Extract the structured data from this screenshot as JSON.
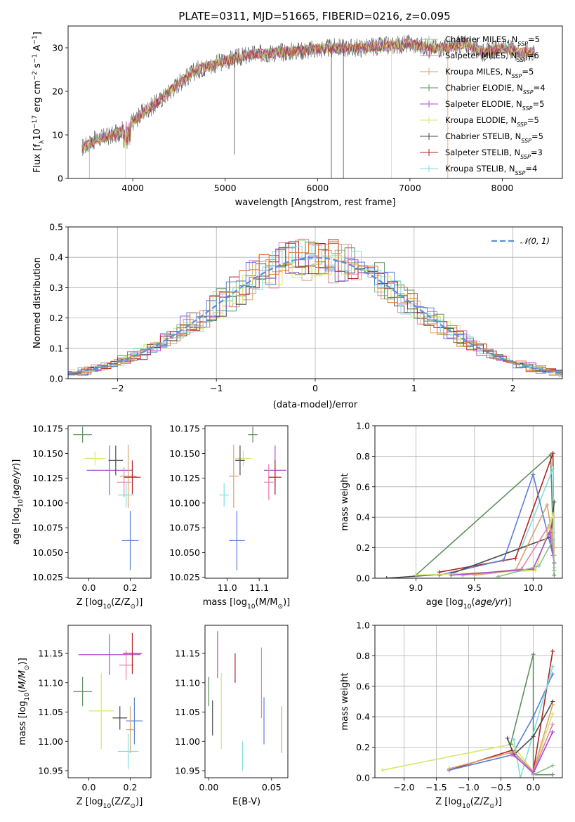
{
  "title": "PLATE=0311, MJD=51665, FIBERID=0216, z=0.095",
  "colors": {
    "ch_miles": "#8fbf8f",
    "sa_miles": "#e87faf",
    "kr_miles": "#d9a36b",
    "ch_elodie": "#5f8f5f",
    "sa_elodie": "#a64ccf",
    "kr_elodie": "#d6e86a",
    "ch_stelib": "#4a4a4a",
    "sa_stelib": "#b22222",
    "kr_stelib": "#80dede",
    "extra_blue": "#5b7fd6",
    "extra_orange": "#e07828",
    "gauss": "#5b8fd6"
  },
  "chart_data": [
    {
      "id": "spectrum",
      "type": "line",
      "xlabel": "wavelength [Angstrom, rest frame]",
      "ylabel": "Flux [f",
      "ylabel_sub": "λ",
      "ylabel_rest": "10",
      "ylabel_exp": "−17",
      "ylabel_tail": " erg cm",
      "ylabel_exp2": "−2",
      "ylabel_tail2": " s",
      "ylabel_exp3": "−1",
      "ylabel_tail3": " A",
      "ylabel_exp4": "−1",
      "ylabel_end": "]",
      "xlim": [
        3300,
        8650
      ],
      "ylim": [
        0,
        35
      ],
      "xticks": [
        "4000",
        "5000",
        "6000",
        "7000",
        "8000"
      ],
      "xtick_values": [
        4000,
        5000,
        6000,
        7000,
        8000
      ],
      "yticks": [
        "0",
        "10",
        "20",
        "30"
      ],
      "ytick_values": [
        0,
        10,
        20,
        30
      ],
      "envelope": {
        "x": [
          3450,
          3600,
          3800,
          3950,
          4100,
          4300,
          4500,
          4700,
          5000,
          5300,
          5600,
          5900,
          6200,
          6500,
          6800,
          7000,
          7200,
          7400,
          7600,
          7800,
          8000,
          8200,
          8350
        ],
        "y": [
          7,
          9,
          10,
          12,
          15,
          18,
          22,
          25,
          27,
          28.5,
          29,
          29.5,
          30,
          30,
          30.5,
          31,
          30,
          30,
          31,
          29,
          30,
          29,
          29
        ]
      },
      "legend": [
        {
          "name": "Chabrier MILES, N",
          "sub": "SSP",
          "tail": "=5",
          "color_key": "ch_miles"
        },
        {
          "name": "Salpeter MILES, N",
          "sub": "SSP",
          "tail": "=6",
          "color_key": "sa_miles"
        },
        {
          "name": "Kroupa MILES, N",
          "sub": "SSP",
          "tail": "=5",
          "color_key": "kr_miles"
        },
        {
          "name": "Chabrier ELODIE, N",
          "sub": "SSP",
          "tail": "=4",
          "color_key": "ch_elodie"
        },
        {
          "name": "Salpeter ELODIE, N",
          "sub": "SSP",
          "tail": "=5",
          "color_key": "sa_elodie"
        },
        {
          "name": "Kroupa ELODIE, N",
          "sub": "SSP",
          "tail": "=5",
          "color_key": "kr_elodie"
        },
        {
          "name": "Chabrier STELIB, N",
          "sub": "SSP",
          "tail": "=5",
          "color_key": "ch_stelib"
        },
        {
          "name": "Salpeter STELIB, N",
          "sub": "SSP",
          "tail": "=3",
          "color_key": "sa_stelib"
        },
        {
          "name": "Kroupa STELIB, N",
          "sub": "SSP",
          "tail": "=4",
          "color_key": "kr_stelib"
        }
      ],
      "legend_placement": "right"
    },
    {
      "id": "residuals",
      "type": "histogram",
      "xlabel": "(data-model)/error",
      "ylabel": "Normed distribution",
      "xlim": [
        -2.5,
        2.5
      ],
      "ylim": [
        0,
        0.5
      ],
      "xticks": [
        "−2",
        "−1",
        "0",
        "1",
        "2"
      ],
      "xtick_values": [
        -2,
        -1,
        0,
        1,
        2
      ],
      "yticks": [
        "0.0",
        "0.1",
        "0.2",
        "0.3",
        "0.4",
        "0.5"
      ],
      "ytick_values": [
        0,
        0.1,
        0.2,
        0.3,
        0.4,
        0.5
      ],
      "grid": true,
      "bin_width": 0.1,
      "gauss_legend": "𝒩(0, 1)",
      "legend_placement": "top-right"
    },
    {
      "id": "age_vs_Z",
      "type": "errorbar",
      "xlabel": "Z [log",
      "xlabel_sub": "10",
      "xlabel_tail": "(Z/Z",
      "xlabel_sub2": "⊙",
      "xlabel_end": ")]",
      "ylabel": "age  [log",
      "ylabel_sub": "10",
      "ylabel_tail": "(age/yr)]",
      "xlim": [
        -0.1,
        0.3
      ],
      "ylim": [
        10.024,
        10.178
      ],
      "xticks": [
        "0.0",
        "0.2"
      ],
      "xtick_values": [
        0,
        0.2
      ],
      "yticks": [
        "10.025",
        "10.050",
        "10.075",
        "10.100",
        "10.125",
        "10.150",
        "10.175"
      ],
      "ytick_values": [
        10.025,
        10.05,
        10.075,
        10.1,
        10.125,
        10.15,
        10.175
      ],
      "points": [
        {
          "x": -0.03,
          "y": 10.169,
          "ex": 0.045,
          "ey": 0.008,
          "c": "ch_elodie"
        },
        {
          "x": 0.03,
          "y": 10.145,
          "ex": 0.05,
          "ey": 0.007,
          "c": "kr_elodie"
        },
        {
          "x": 0.1,
          "y": 10.133,
          "ex": 0.11,
          "ey": 0.025,
          "c": "sa_elodie"
        },
        {
          "x": 0.13,
          "y": 10.143,
          "ex": 0.035,
          "ey": 0.015,
          "c": "ch_stelib"
        },
        {
          "x": 0.17,
          "y": 10.121,
          "ex": 0.035,
          "ey": 0.015,
          "c": "sa_miles"
        },
        {
          "x": 0.19,
          "y": 10.127,
          "ex": 0.04,
          "ey": 0.032,
          "c": "kr_miles"
        },
        {
          "x": 0.21,
          "y": 10.126,
          "ex": 0.04,
          "ey": 0.017,
          "c": "sa_stelib"
        },
        {
          "x": 0.18,
          "y": 10.108,
          "ex": 0.04,
          "ey": 0.012,
          "c": "kr_stelib"
        },
        {
          "x": 0.2,
          "y": 10.062,
          "ex": 0.04,
          "ey": 0.03,
          "c": "extra_blue"
        }
      ]
    },
    {
      "id": "age_vs_mass",
      "type": "errorbar",
      "xlabel": "mass [log",
      "xlabel_sub": "10",
      "xlabel_tail": "(M/M",
      "xlabel_sub2": "⊙",
      "xlabel_end": ")]",
      "ylabel": "",
      "xlim": [
        10.93,
        11.19
      ],
      "ylim": [
        10.024,
        10.178
      ],
      "xticks": [
        "11.0",
        "11.1"
      ],
      "xtick_values": [
        11.0,
        11.1
      ],
      "yticks": [
        "10.025",
        "10.050",
        "10.075",
        "10.100",
        "10.125",
        "10.150",
        "10.175"
      ],
      "ytick_values": [
        10.025,
        10.05,
        10.075,
        10.1,
        10.125,
        10.15,
        10.175
      ],
      "points": [
        {
          "x": 11.08,
          "y": 10.169,
          "ex": 0.015,
          "ey": 0.008,
          "c": "ch_elodie"
        },
        {
          "x": 11.05,
          "y": 10.145,
          "ex": 0.025,
          "ey": 0.008,
          "c": "kr_elodie"
        },
        {
          "x": 11.15,
          "y": 10.133,
          "ex": 0.035,
          "ey": 0.025,
          "c": "sa_elodie"
        },
        {
          "x": 11.04,
          "y": 10.143,
          "ex": 0.015,
          "ey": 0.015,
          "c": "ch_stelib"
        },
        {
          "x": 11.13,
          "y": 10.121,
          "ex": 0.015,
          "ey": 0.018,
          "c": "sa_miles"
        },
        {
          "x": 11.02,
          "y": 10.127,
          "ex": 0.015,
          "ey": 0.032,
          "c": "kr_miles"
        },
        {
          "x": 11.15,
          "y": 10.126,
          "ex": 0.02,
          "ey": 0.017,
          "c": "sa_stelib"
        },
        {
          "x": 10.99,
          "y": 10.108,
          "ex": 0.015,
          "ey": 0.012,
          "c": "kr_stelib"
        },
        {
          "x": 11.03,
          "y": 10.062,
          "ex": 0.025,
          "ey": 0.03,
          "c": "extra_blue"
        }
      ]
    },
    {
      "id": "weight_vs_age",
      "type": "line",
      "xlabel": "age  [log",
      "xlabel_sub": "10",
      "xlabel_tail": "(age/yr)]",
      "ylabel": "mass weight",
      "xlim": [
        8.65,
        10.25
      ],
      "ylim": [
        0,
        1
      ],
      "xticks": [
        "9.0",
        "9.5",
        "10.0"
      ],
      "xtick_values": [
        9,
        9.5,
        10
      ],
      "yticks": [
        "0.0",
        "0.2",
        "0.4",
        "0.6",
        "0.8",
        "1.0"
      ],
      "ytick_values": [
        0,
        0.2,
        0.4,
        0.6,
        0.8,
        1
      ],
      "grid": true,
      "series": [
        {
          "c": "ch_elodie",
          "x": [
            9.0,
            10.15,
            10.17,
            10.18
          ],
          "y": [
            0.02,
            0.81,
            0.3,
            0.02
          ]
        },
        {
          "c": "sa_stelib",
          "x": [
            9.2,
            9.85,
            10.17,
            10.18
          ],
          "y": [
            0.04,
            0.13,
            0.82,
            0.1
          ]
        },
        {
          "c": "kr_stelib",
          "x": [
            9.3,
            9.9,
            10.17,
            10.18
          ],
          "y": [
            0.03,
            0.2,
            0.72,
            0.07
          ]
        },
        {
          "c": "extra_blue",
          "x": [
            9.2,
            9.75,
            10.0,
            10.17
          ],
          "y": [
            0.02,
            0.12,
            0.68,
            0.15
          ]
        },
        {
          "c": "ch_stelib",
          "x": [
            8.75,
            9.3,
            10.15,
            10.18
          ],
          "y": [
            0.0,
            0.03,
            0.27,
            0.5
          ]
        },
        {
          "c": "kr_miles",
          "x": [
            9.5,
            9.85,
            10.12,
            10.18
          ],
          "y": [
            0.02,
            0.05,
            0.48,
            0.2
          ]
        },
        {
          "c": "sa_miles",
          "x": [
            9.4,
            9.9,
            10.14,
            10.18
          ],
          "y": [
            0.02,
            0.06,
            0.35,
            0.15
          ]
        },
        {
          "c": "kr_elodie",
          "x": [
            9.0,
            10.02,
            10.17,
            10.18
          ],
          "y": [
            0.02,
            0.05,
            0.42,
            0.05
          ]
        },
        {
          "c": "sa_elodie",
          "x": [
            9.3,
            10.0,
            10.14,
            10.18
          ],
          "y": [
            0.02,
            0.06,
            0.3,
            0.1
          ]
        },
        {
          "c": "ch_miles",
          "x": [
            9.7,
            10.05,
            10.17,
            10.18
          ],
          "y": [
            0.01,
            0.08,
            0.25,
            0.05
          ]
        }
      ]
    },
    {
      "id": "mass_vs_Z",
      "type": "errorbar",
      "xlabel": "Z [log",
      "xlabel_sub": "10",
      "xlabel_tail": "(Z/Z",
      "xlabel_sub2": "⊙",
      "xlabel_end": ")]",
      "ylabel": "mass [log",
      "ylabel_sub": "10",
      "ylabel_tail": "(M/M",
      "ylabel_sub2": "⊙",
      "ylabel_end": ")]",
      "xlim": [
        -0.1,
        0.3
      ],
      "ylim": [
        10.938,
        11.198
      ],
      "xticks": [
        "0.0",
        "0.2"
      ],
      "xtick_values": [
        0,
        0.2
      ],
      "yticks": [
        "10.95",
        "11.00",
        "11.05",
        "11.10",
        "11.15"
      ],
      "ytick_values": [
        10.95,
        11.0,
        11.05,
        11.1,
        11.15
      ],
      "points": [
        {
          "x": -0.03,
          "y": 11.085,
          "ex": 0.045,
          "ey": 0.025,
          "c": "ch_elodie"
        },
        {
          "x": 0.06,
          "y": 11.052,
          "ex": 0.06,
          "ey": 0.065,
          "c": "kr_elodie"
        },
        {
          "x": 0.1,
          "y": 11.148,
          "ex": 0.15,
          "ey": 0.035,
          "c": "sa_elodie"
        },
        {
          "x": 0.15,
          "y": 11.04,
          "ex": 0.035,
          "ey": 0.02,
          "c": "ch_stelib"
        },
        {
          "x": 0.18,
          "y": 11.13,
          "ex": 0.035,
          "ey": 0.025,
          "c": "sa_miles"
        },
        {
          "x": 0.21,
          "y": 11.15,
          "ex": 0.045,
          "ey": 0.035,
          "c": "sa_stelib"
        },
        {
          "x": 0.22,
          "y": 11.035,
          "ex": 0.04,
          "ey": 0.04,
          "c": "extra_blue"
        },
        {
          "x": 0.2,
          "y": 11.02,
          "ex": 0.02,
          "ey": 0.04,
          "c": "kr_miles"
        },
        {
          "x": 0.19,
          "y": 10.983,
          "ex": 0.05,
          "ey": 0.03,
          "c": "kr_stelib"
        }
      ]
    },
    {
      "id": "mass_vs_ebv",
      "type": "errorbar",
      "xlabel": "E(B-V)",
      "ylabel": "",
      "xlim": [
        -0.003,
        0.063
      ],
      "ylim": [
        10.938,
        11.198
      ],
      "xticks": [
        "0.00",
        "0.05"
      ],
      "xtick_values": [
        0,
        0.05
      ],
      "yticks": [
        "10.95",
        "11.00",
        "11.05",
        "11.10",
        "11.15"
      ],
      "ytick_values": [
        10.95,
        11.0,
        11.05,
        11.1,
        11.15
      ],
      "points": [
        {
          "x": 0.0,
          "y": 11.085,
          "ex": 0,
          "ey": 0.025,
          "c": "ch_elodie"
        },
        {
          "x": 0.003,
          "y": 11.04,
          "ex": 0,
          "ey": 0.03,
          "c": "ch_stelib"
        },
        {
          "x": 0.007,
          "y": 11.148,
          "ex": 0,
          "ey": 0.04,
          "c": "sa_elodie"
        },
        {
          "x": 0.01,
          "y": 11.052,
          "ex": 0,
          "ey": 0.065,
          "c": "kr_elodie"
        },
        {
          "x": 0.021,
          "y": 11.125,
          "ex": 0,
          "ey": 0.025,
          "c": "sa_stelib"
        },
        {
          "x": 0.027,
          "y": 10.975,
          "ex": 0,
          "ey": 0.025,
          "c": "kr_stelib"
        },
        {
          "x": 0.042,
          "y": 11.1,
          "ex": 0,
          "ey": 0.06,
          "c": "sa_miles"
        },
        {
          "x": 0.044,
          "y": 11.035,
          "ex": 0,
          "ey": 0.04,
          "c": "extra_blue"
        },
        {
          "x": 0.058,
          "y": 11.02,
          "ex": 0,
          "ey": 0.04,
          "c": "kr_miles"
        }
      ]
    },
    {
      "id": "weight_vs_Z",
      "type": "line",
      "xlabel": "Z [log",
      "xlabel_sub": "10",
      "xlabel_tail": "(Z/Z",
      "xlabel_sub2": "⊙",
      "xlabel_end": ")]",
      "ylabel": "mass weight",
      "xlim": [
        -2.45,
        0.45
      ],
      "ylim": [
        0,
        1
      ],
      "xticks": [
        "−2.0",
        "−1.5",
        "−1.0",
        "−0.5",
        "0.0"
      ],
      "xtick_values": [
        -2,
        -1.5,
        -1,
        -0.5,
        0
      ],
      "yticks": [
        "0.0",
        "0.2",
        "0.4",
        "0.6",
        "0.8",
        "1.0"
      ],
      "ytick_values": [
        0,
        0.2,
        0.4,
        0.6,
        0.8,
        1
      ],
      "grid": true,
      "series": [
        {
          "c": "kr_elodie",
          "x": [
            -2.33,
            -0.33,
            0.0,
            0.3
          ],
          "y": [
            0.05,
            0.22,
            0.04,
            0.42
          ]
        },
        {
          "c": "ch_elodie",
          "x": [
            -0.35,
            0.0,
            0.0,
            0.3
          ],
          "y": [
            0.22,
            0.81,
            0.02,
            0.02
          ]
        },
        {
          "c": "sa_stelib",
          "x": [
            -1.3,
            -0.33,
            0.0,
            0.3
          ],
          "y": [
            0.05,
            0.18,
            0.04,
            0.83
          ]
        },
        {
          "c": "extra_blue",
          "x": [
            -1.3,
            -0.33,
            0.0,
            0.3
          ],
          "y": [
            0.05,
            0.15,
            0.4,
            0.68
          ]
        },
        {
          "c": "kr_stelib",
          "x": [
            -0.3,
            -0.2,
            0.3
          ],
          "y": [
            0.25,
            0.0,
            0.73
          ]
        },
        {
          "c": "ch_stelib",
          "x": [
            -0.4,
            -0.3,
            0.0,
            0.3
          ],
          "y": [
            0.26,
            0.15,
            0.27,
            0.5
          ]
        },
        {
          "c": "kr_miles",
          "x": [
            -1.3,
            -0.3,
            0.0,
            0.3
          ],
          "y": [
            0.06,
            0.17,
            0.04,
            0.48
          ]
        },
        {
          "c": "sa_miles",
          "x": [
            -0.35,
            0.0,
            0.3
          ],
          "y": [
            0.16,
            0.04,
            0.35
          ]
        },
        {
          "c": "sa_elodie",
          "x": [
            -0.3,
            0.0,
            0.3
          ],
          "y": [
            0.15,
            0.03,
            0.3
          ]
        },
        {
          "c": "ch_miles",
          "x": [
            0.0,
            0.3
          ],
          "y": [
            0.02,
            0.08
          ]
        }
      ]
    }
  ]
}
